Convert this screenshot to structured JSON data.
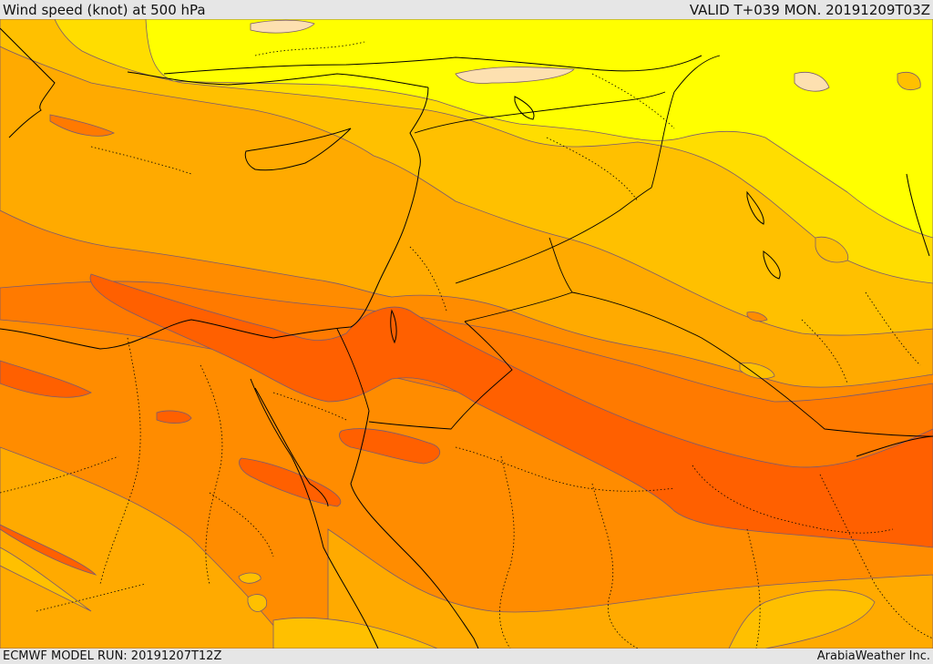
{
  "header": {
    "title": "Wind speed (knot) at 500 hPa",
    "valid_time": "VALID T+039 MON. 20191209T03Z"
  },
  "footer": {
    "model_run": "ECMWF MODEL RUN: 20191207T12Z",
    "credit": "ArabiaWeather Inc."
  },
  "map": {
    "colors": {
      "band_peach": "#fde0b0",
      "band_yellow": "#ffff00",
      "band_gold": "#ffdd00",
      "band_amber": "#ffc000",
      "band_orange_light": "#ffaa00",
      "band_orange": "#ff8c00",
      "band_orange_dark": "#ff7a00",
      "band_red_orange": "#ff6000",
      "contour_line": "#7a5a70",
      "coast_line": "#000000"
    }
  }
}
